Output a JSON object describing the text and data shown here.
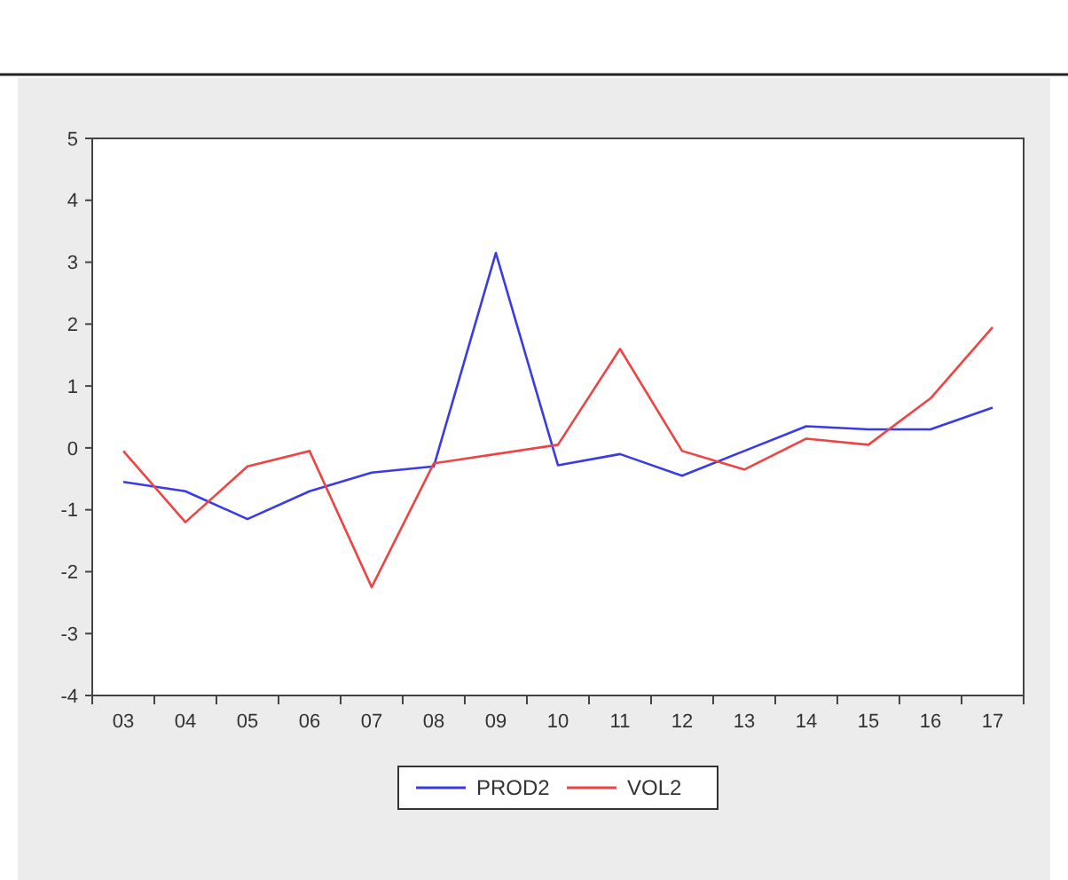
{
  "chart_data": {
    "type": "line",
    "categories": [
      "03",
      "04",
      "05",
      "06",
      "07",
      "08",
      "09",
      "10",
      "11",
      "12",
      "13",
      "14",
      "15",
      "16",
      "17"
    ],
    "series": [
      {
        "name": "PROD2",
        "color": "#3a3ae8",
        "values": [
          -0.55,
          -0.7,
          -1.15,
          -0.7,
          -0.4,
          -0.3,
          3.15,
          -0.28,
          -0.1,
          -0.45,
          -0.05,
          0.35,
          0.3,
          0.3,
          0.65
        ]
      },
      {
        "name": "VOL2",
        "color": "#ee4444",
        "values": [
          -0.05,
          -1.2,
          -0.3,
          -0.05,
          -2.25,
          -0.25,
          -0.1,
          0.05,
          1.6,
          -0.05,
          -0.35,
          0.15,
          0.05,
          0.8,
          1.95
        ]
      }
    ],
    "ylim": [
      -4,
      5
    ],
    "yticks": [
      -4,
      -3,
      -2,
      -1,
      0,
      1,
      2,
      3,
      4,
      5
    ],
    "grid": false,
    "legend": "bottom",
    "line_style": "solid",
    "marker": "none"
  }
}
